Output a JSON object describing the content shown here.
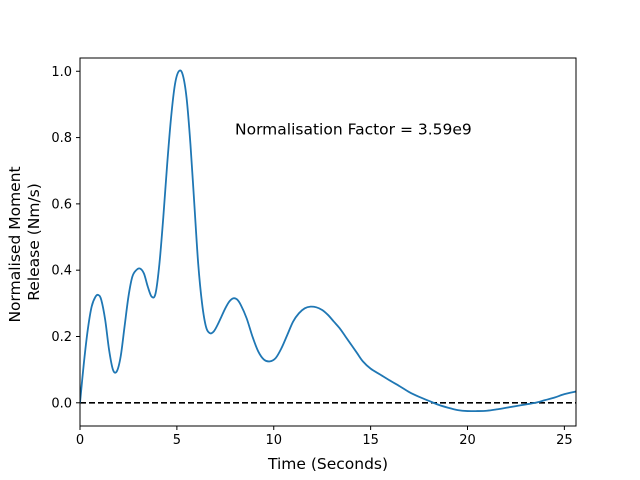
{
  "chart_data": {
    "type": "line",
    "title": "",
    "xlabel": "Time (Seconds)",
    "ylabel_lines": [
      "Normalised Moment",
      "Release (Nm/s)"
    ],
    "xlim": [
      0,
      25.6
    ],
    "ylim": [
      -0.07,
      1.04
    ],
    "xticks": [
      {
        "value": 0,
        "label": "0"
      },
      {
        "value": 5,
        "label": "5"
      },
      {
        "value": 10,
        "label": "10"
      },
      {
        "value": 15,
        "label": "15"
      },
      {
        "value": 20,
        "label": "20"
      },
      {
        "value": 25,
        "label": "25"
      }
    ],
    "yticks": [
      {
        "value": 0.0,
        "label": "0.0"
      },
      {
        "value": 0.2,
        "label": "0.2"
      },
      {
        "value": 0.4,
        "label": "0.4"
      },
      {
        "value": 0.6,
        "label": "0.6"
      },
      {
        "value": 0.8,
        "label": "0.8"
      },
      {
        "value": 1.0,
        "label": "1.0"
      }
    ],
    "grid": false,
    "annotation": {
      "text": "Normalisation Factor = 3.59e9",
      "x": 8.0,
      "y": 0.81
    },
    "reference_line": {
      "y": 0,
      "style": "dashed",
      "color": "#000000"
    },
    "series": [
      {
        "color": "#1f77b4",
        "x": [
          0,
          0.2,
          0.4,
          0.6,
          0.8,
          0.95,
          1.1,
          1.3,
          1.5,
          1.7,
          1.9,
          2.1,
          2.3,
          2.5,
          2.7,
          2.9,
          3.1,
          3.3,
          3.5,
          3.7,
          3.9,
          4.1,
          4.3,
          4.5,
          4.7,
          4.9,
          5.1,
          5.3,
          5.5,
          5.7,
          5.9,
          6.1,
          6.3,
          6.5,
          6.7,
          6.9,
          7.1,
          7.3,
          7.5,
          7.7,
          7.9,
          8.1,
          8.3,
          8.6,
          8.9,
          9.2,
          9.5,
          9.8,
          10.1,
          10.4,
          10.7,
          11.0,
          11.3,
          11.6,
          11.9,
          12.2,
          12.5,
          12.8,
          13.1,
          13.4,
          13.7,
          14.0,
          14.3,
          14.6,
          15.0,
          15.5,
          16.0,
          16.5,
          17.0,
          17.5,
          18.0,
          18.5,
          19.0,
          19.5,
          20.0,
          20.5,
          21.0,
          21.5,
          22.0,
          22.5,
          23.0,
          23.5,
          24.0,
          24.5,
          25.0,
          25.6
        ],
        "y": [
          0.0,
          0.12,
          0.22,
          0.29,
          0.32,
          0.325,
          0.31,
          0.25,
          0.16,
          0.1,
          0.095,
          0.14,
          0.23,
          0.32,
          0.38,
          0.4,
          0.405,
          0.39,
          0.35,
          0.32,
          0.33,
          0.42,
          0.56,
          0.72,
          0.86,
          0.96,
          1.0,
          0.99,
          0.92,
          0.78,
          0.6,
          0.42,
          0.3,
          0.23,
          0.21,
          0.215,
          0.235,
          0.26,
          0.285,
          0.305,
          0.315,
          0.312,
          0.295,
          0.255,
          0.2,
          0.155,
          0.13,
          0.125,
          0.135,
          0.165,
          0.205,
          0.245,
          0.27,
          0.285,
          0.29,
          0.288,
          0.28,
          0.265,
          0.245,
          0.225,
          0.2,
          0.175,
          0.15,
          0.125,
          0.103,
          0.085,
          0.067,
          0.05,
          0.032,
          0.018,
          0.006,
          -0.006,
          -0.015,
          -0.022,
          -0.025,
          -0.025,
          -0.024,
          -0.02,
          -0.015,
          -0.01,
          -0.005,
          0.0,
          0.008,
          0.016,
          0.026,
          0.034
        ]
      }
    ]
  }
}
